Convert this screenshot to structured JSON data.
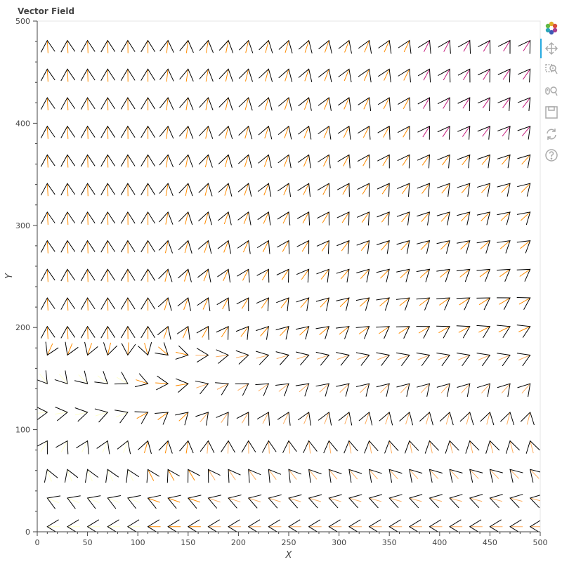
{
  "chart_data": {
    "type": "vector-field",
    "title": "Vector Field",
    "xlabel": "X",
    "ylabel": "Y",
    "xlim": [
      0,
      500
    ],
    "ylim": [
      0,
      500
    ],
    "x_ticks": [
      0,
      50,
      100,
      150,
      200,
      250,
      300,
      350,
      400,
      450,
      500
    ],
    "y_ticks": [
      0,
      100,
      200,
      300,
      400,
      500
    ],
    "grid": false,
    "field": {
      "x_start": 10,
      "x_end": 490,
      "x_step": 20,
      "y_start": 5,
      "y_end": 495,
      "y_step": 14,
      "singularity": [
        125,
        200
      ]
    },
    "colors": {
      "outline": "#000000",
      "line_low": "#ffffcc",
      "line_mid": "#fdae61",
      "line_high": "#ff8c00",
      "line_top": "#c51b7d",
      "axis": "#444444"
    }
  },
  "toolbar": {
    "tools": [
      {
        "name": "bokeh-logo",
        "icon": "bokeh-logo-icon"
      },
      {
        "name": "pan",
        "icon": "pan-icon"
      },
      {
        "name": "box-zoom",
        "icon": "box-zoom-icon"
      },
      {
        "name": "wheel-zoom",
        "icon": "wheel-zoom-icon"
      },
      {
        "name": "save",
        "icon": "save-icon"
      },
      {
        "name": "reset",
        "icon": "reset-icon"
      },
      {
        "name": "help",
        "icon": "help-icon"
      }
    ]
  }
}
